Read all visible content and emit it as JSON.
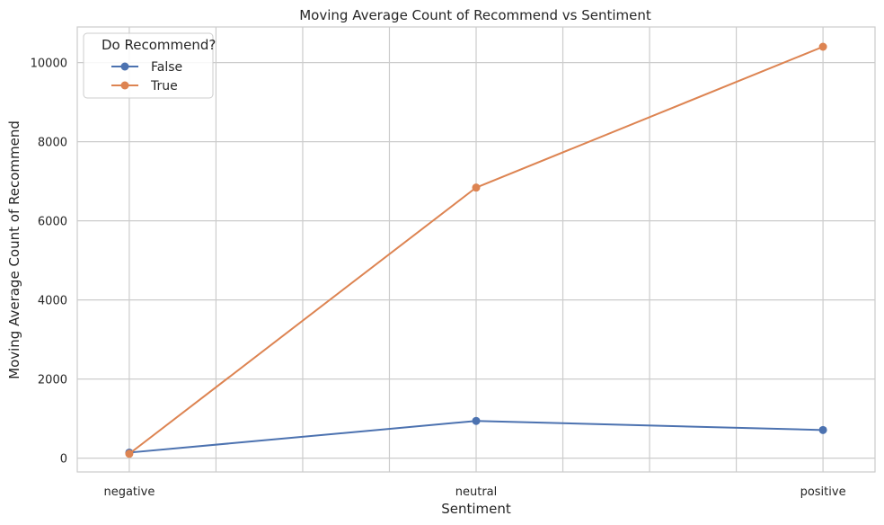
{
  "chart_data": {
    "type": "line",
    "title": "Moving Average Count of Recommend vs Sentiment",
    "xlabel": "Sentiment",
    "ylabel": "Moving Average Count of Recommend",
    "categories": [
      "negative",
      "neutral",
      "positive"
    ],
    "series": [
      {
        "name": "False",
        "values": [
          140,
          940,
          710
        ],
        "color": "#4c72b0"
      },
      {
        "name": "True",
        "values": [
          110,
          6840,
          10400
        ],
        "color": "#dd8452"
      }
    ],
    "ylim": [
      -350,
      10900
    ],
    "yticks": [
      0,
      2000,
      4000,
      6000,
      8000,
      10000
    ],
    "ytick_labels": [
      "0",
      "2000",
      "4000",
      "6000",
      "8000",
      "10000"
    ],
    "xlim": [
      -0.15,
      2.15
    ],
    "xgrid_positions": [
      0,
      0.25,
      0.5,
      0.75,
      1,
      1.25,
      1.5,
      1.75,
      2
    ],
    "grid": true,
    "legend": {
      "title": "Do Recommend?",
      "placement": "top-left",
      "entries": [
        "False",
        "True"
      ]
    },
    "colors": {
      "grid": "#cccccc",
      "frame": "#cccccc",
      "text": "#262626"
    }
  }
}
